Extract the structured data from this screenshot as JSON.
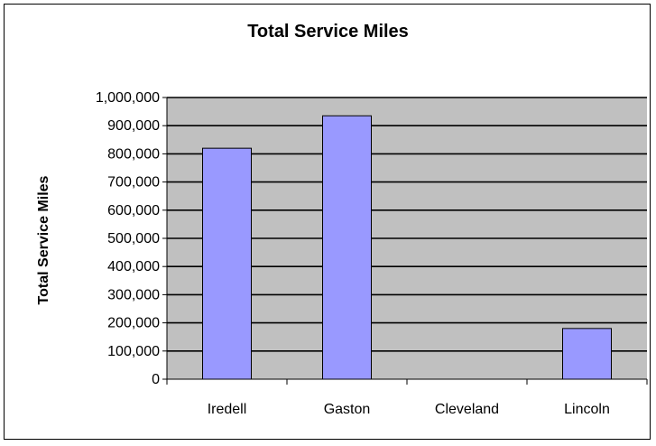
{
  "chart_data": {
    "type": "bar",
    "title": "Total Service Miles",
    "xlabel": "",
    "ylabel": "Total Service Miles",
    "categories": [
      "Iredell",
      "Gaston",
      "Cleveland",
      "Lincoln"
    ],
    "values": [
      820000,
      935000,
      0,
      180000
    ],
    "ylim": [
      0,
      1000000
    ],
    "yticks": [
      0,
      100000,
      200000,
      300000,
      400000,
      500000,
      600000,
      700000,
      800000,
      900000,
      1000000
    ],
    "ytick_labels": [
      "0",
      "100,000",
      "200,000",
      "300,000",
      "400,000",
      "500,000",
      "600,000",
      "700,000",
      "800,000",
      "900,000",
      "1,000,000"
    ],
    "grid": true,
    "legend": "none",
    "colors": {
      "bar_fill": "#9999ff",
      "bar_stroke": "#000000",
      "plot_bg": "#c0c0c0",
      "grid": "#000000"
    }
  }
}
